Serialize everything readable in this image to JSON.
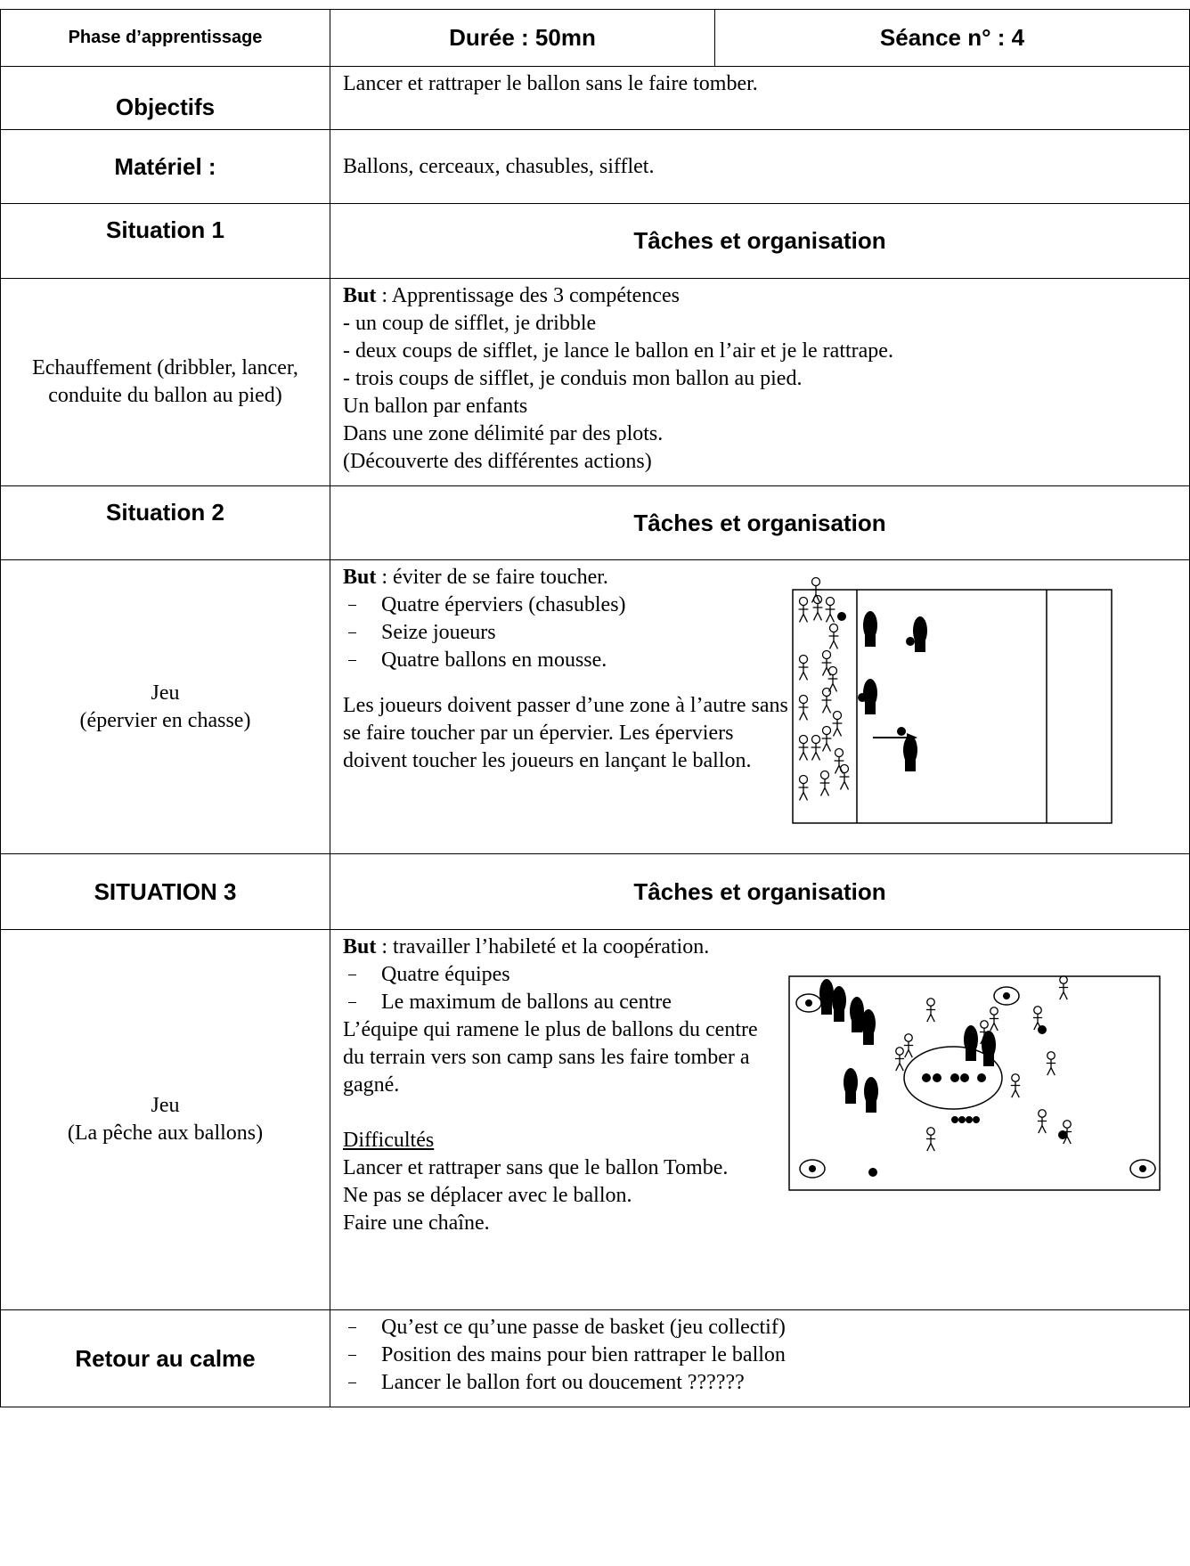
{
  "header": {
    "phase": "Phase d’apprentissage",
    "duree": "Durée : 50mn",
    "seance": "Séance n° : 4"
  },
  "objectifs": {
    "label": "Objectifs",
    "text": "Lancer et rattraper le ballon sans le faire tomber."
  },
  "materiel": {
    "label": "Matériel :",
    "text": "Ballons, cerceaux, chasubles, sifflet."
  },
  "situations": [
    {
      "label": "Situation 1",
      "heading": "Tâches et organisation",
      "name": [
        "Echauffement (dribbler, lancer, conduite du ballon au pied)"
      ],
      "but_label": "But",
      "but": " : Apprentissage des 3 compétences",
      "lines": [
        "- un coup de sifflet, je dribble",
        "- deux coups de sifflet, je lance le ballon en l’air et je le rattrape.",
        "- trois coups de sifflet, je conduis mon ballon au pied.",
        "Un ballon par enfants",
        "Dans une zone délimité par des plots.",
        "(Découverte des différentes actions)"
      ]
    },
    {
      "label": "Situation 2",
      "heading": "Tâches et organisation",
      "name": [
        "Jeu",
        "(épervier en chasse)"
      ],
      "but_label": "But",
      "but": " : éviter de se faire toucher.",
      "items": [
        "Quatre éperviers (chasubles)",
        "Seize joueurs",
        "Quatre ballons en mousse."
      ],
      "paragraph": "Les joueurs doivent passer d’une zone à l’autre sans se faire toucher par un épervier. Les éperviers doivent toucher les joueurs en lançant le ballon."
    },
    {
      "label": "SITUATION 3",
      "heading": "Tâches et organisation",
      "name": [
        "Jeu",
        "(La pêche aux ballons)"
      ],
      "but_label": "But",
      "but": " : travailler l’habileté et la coopération.",
      "items": [
        "Quatre équipes",
        "Le maximum de ballons au centre"
      ],
      "paragraph": "L’équipe qui ramene le plus de ballons du centre du terrain vers son camp sans les faire tomber a gagné.",
      "difficulty_title": "Difficultés",
      "lines": [
        "Lancer et rattraper sans que le ballon Tombe.",
        "Ne pas se déplacer avec le ballon.",
        "Faire une chaîne."
      ]
    }
  ],
  "retour": {
    "label": "Retour au calme",
    "items": [
      "Qu’est ce qu’une passe de basket (jeu collectif)",
      "Position des mains pour bien rattraper le ballon",
      "Lancer le ballon fort ou doucement ??????"
    ]
  }
}
